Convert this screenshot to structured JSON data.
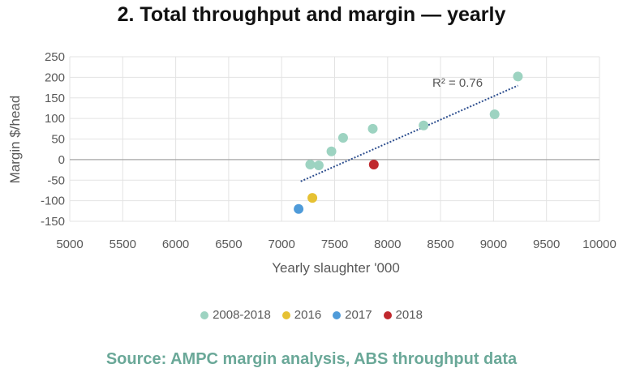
{
  "chart_data": {
    "type": "scatter",
    "title": "2. Total throughput and margin — yearly",
    "xlabel": "Yearly slaughter '000",
    "ylabel": "Margin $/head",
    "xlim": [
      5000,
      10000
    ],
    "ylim": [
      -150,
      250
    ],
    "x_ticks": [
      5000,
      5500,
      6000,
      6500,
      7000,
      7500,
      8000,
      8500,
      9000,
      9500,
      10000
    ],
    "y_ticks": [
      250,
      200,
      150,
      100,
      50,
      0,
      -50,
      -100,
      -150
    ],
    "grid": true,
    "legend_position": "bottom",
    "series": [
      {
        "name": "2008-2018",
        "color": "#9dd3c1",
        "points": [
          {
            "x": 7270,
            "y": -12
          },
          {
            "x": 7350,
            "y": -14
          },
          {
            "x": 7470,
            "y": 20
          },
          {
            "x": 7580,
            "y": 53
          },
          {
            "x": 7860,
            "y": 75
          },
          {
            "x": 8340,
            "y": 83
          },
          {
            "x": 9010,
            "y": 110
          },
          {
            "x": 9230,
            "y": 202
          }
        ]
      },
      {
        "name": "2016",
        "color": "#e6c133",
        "points": [
          {
            "x": 7290,
            "y": -93
          }
        ]
      },
      {
        "name": "2017",
        "color": "#4f9bd9",
        "points": [
          {
            "x": 7160,
            "y": -120
          }
        ]
      },
      {
        "name": "2018",
        "color": "#c0282d",
        "points": [
          {
            "x": 7870,
            "y": -12
          }
        ]
      }
    ],
    "trendline": {
      "from": {
        "x": 7180,
        "y": -53
      },
      "to": {
        "x": 9230,
        "y": 180
      },
      "color": "#2e4f8f",
      "style": "dotted"
    },
    "annotation": "R² = 0.76"
  },
  "source": {
    "text": "Source: AMPC margin analysis, ABS throughput data",
    "color": "#6aa898"
  }
}
